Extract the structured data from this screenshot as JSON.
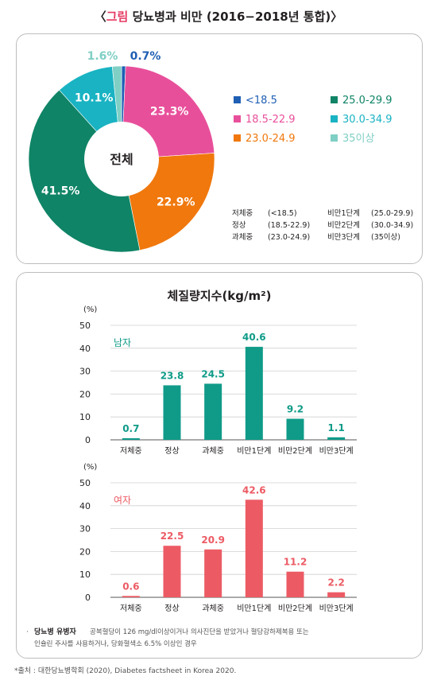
{
  "figure": {
    "title_open": "〈",
    "title_accent": "그림",
    "title_rest": " 당뇨병과 비만 (2016−2018년 통합)",
    "title_close": "〉"
  },
  "colors": {
    "under": "#1f5fb4",
    "normal": "#e84f9b",
    "pre": "#f0780d",
    "ob1": "#0f8466",
    "ob2": "#19b3c3",
    "ob3": "#7fcfc5",
    "male": "#0f9b88",
    "female": "#ec5b64"
  },
  "chart_data": [
    {
      "type": "pie",
      "center_label": "전체",
      "slices": [
        {
          "label": "<18.5",
          "value": 0.7,
          "display": "0.7%",
          "color_key": "under"
        },
        {
          "label": "18.5-22.9",
          "value": 23.3,
          "display": "23.3%",
          "color_key": "normal"
        },
        {
          "label": "23.0-24.9",
          "value": 22.9,
          "display": "22.9%",
          "color_key": "pre"
        },
        {
          "label": "25.0-29.9",
          "value": 41.5,
          "display": "41.5%",
          "color_key": "ob1"
        },
        {
          "label": "30.0-34.9",
          "value": 10.1,
          "display": "10.1%",
          "color_key": "ob2"
        },
        {
          "label": "35이상",
          "value": 1.6,
          "display": "1.6%",
          "color_key": "ob3"
        }
      ],
      "legend_left": [
        "<18.5",
        "18.5-22.9",
        "23.0-24.9"
      ],
      "legend_right": [
        "25.0-29.9",
        "30.0-34.9",
        "35이상"
      ],
      "notes": [
        {
          "label": "저체중",
          "range": "(<18.5)"
        },
        {
          "label": "정상",
          "range": "(18.5-22.9)"
        },
        {
          "label": "과체중",
          "range": "(23.0-24.9)"
        },
        {
          "label": "비만1단계",
          "range": "(25.0-29.9)"
        },
        {
          "label": "비만2단계",
          "range": "(30.0-34.9)"
        },
        {
          "label": "비만3단계",
          "range": "(35이상)"
        }
      ]
    },
    {
      "type": "bar",
      "title": "체질량지수(kg/m²)",
      "series_name": "남자",
      "ylabel": "(%)",
      "ylim": [
        0,
        50
      ],
      "yticks": [
        0,
        10,
        20,
        30,
        40,
        50
      ],
      "grid": true,
      "categories": [
        "저체중",
        "정상",
        "과체중",
        "비만1단계",
        "비만2단계",
        "비만3단계"
      ],
      "values": [
        0.7,
        23.8,
        24.5,
        40.6,
        9.2,
        1.1
      ]
    },
    {
      "type": "bar",
      "series_name": "여자",
      "ylabel": "(%)",
      "ylim": [
        0,
        50
      ],
      "yticks": [
        0,
        10,
        20,
        30,
        40,
        50
      ],
      "grid": true,
      "categories": [
        "저체중",
        "정상",
        "과체중",
        "비만1단계",
        "비만2단계",
        "비만3단계"
      ],
      "values": [
        0.6,
        22.5,
        20.9,
        42.6,
        11.2,
        2.2
      ]
    }
  ],
  "footnote": {
    "bullet": "·",
    "term": "당뇨병 유병자",
    "line1": "공복혈당이 126 mg/dl이상이거나 의사진단을 받았거나 혈당강하제복용 또는",
    "line2": "인슐린 주사를 사용하거나, 당화혈색소 6.5% 이상인 경우"
  },
  "source": "*출처 : 대한당뇨병학회 (2020), Diabetes factsheet in Korea 2020."
}
